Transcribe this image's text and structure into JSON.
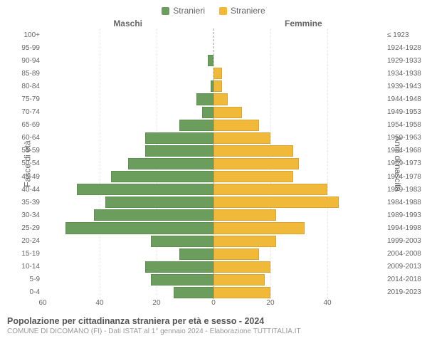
{
  "legend": {
    "male": {
      "label": "Stranieri",
      "color": "#6b9e5c"
    },
    "female": {
      "label": "Straniere",
      "color": "#f0b93a"
    }
  },
  "headers": {
    "left": "Maschi",
    "right": "Femmine"
  },
  "axis_titles": {
    "left": "Fasce di età",
    "right": "Anni di nascita"
  },
  "chart": {
    "type": "bar",
    "xmax": 60,
    "xticks": [
      60,
      40,
      20,
      0,
      20,
      40
    ],
    "grid_color": "#e8e8e8",
    "center_color": "#999999",
    "background_color": "#ffffff",
    "tick_fontsize": 10,
    "label_fontsize": 10,
    "header_fontsize": 12,
    "rows": [
      {
        "age": "100+",
        "birth": "≤ 1923",
        "m": 0,
        "f": 0
      },
      {
        "age": "95-99",
        "birth": "1924-1928",
        "m": 0,
        "f": 0
      },
      {
        "age": "90-94",
        "birth": "1929-1933",
        "m": 2,
        "f": 0
      },
      {
        "age": "85-89",
        "birth": "1934-1938",
        "m": 0,
        "f": 3
      },
      {
        "age": "80-84",
        "birth": "1939-1943",
        "m": 1,
        "f": 3
      },
      {
        "age": "75-79",
        "birth": "1944-1948",
        "m": 6,
        "f": 5
      },
      {
        "age": "70-74",
        "birth": "1949-1953",
        "m": 4,
        "f": 10
      },
      {
        "age": "65-69",
        "birth": "1954-1958",
        "m": 12,
        "f": 16
      },
      {
        "age": "60-64",
        "birth": "1959-1963",
        "m": 24,
        "f": 20
      },
      {
        "age": "55-59",
        "birth": "1964-1968",
        "m": 24,
        "f": 28
      },
      {
        "age": "50-54",
        "birth": "1969-1973",
        "m": 30,
        "f": 30
      },
      {
        "age": "45-49",
        "birth": "1974-1978",
        "m": 36,
        "f": 28
      },
      {
        "age": "40-44",
        "birth": "1979-1983",
        "m": 48,
        "f": 40
      },
      {
        "age": "35-39",
        "birth": "1984-1988",
        "m": 38,
        "f": 44
      },
      {
        "age": "30-34",
        "birth": "1989-1993",
        "m": 42,
        "f": 22
      },
      {
        "age": "25-29",
        "birth": "1994-1998",
        "m": 52,
        "f": 32
      },
      {
        "age": "20-24",
        "birth": "1999-2003",
        "m": 22,
        "f": 22
      },
      {
        "age": "15-19",
        "birth": "2004-2008",
        "m": 12,
        "f": 16
      },
      {
        "age": "10-14",
        "birth": "2009-2013",
        "m": 24,
        "f": 20
      },
      {
        "age": "5-9",
        "birth": "2014-2018",
        "m": 22,
        "f": 18
      },
      {
        "age": "0-4",
        "birth": "2019-2023",
        "m": 14,
        "f": 20
      }
    ]
  },
  "footer": {
    "title": "Popolazione per cittadinanza straniera per età e sesso - 2024",
    "subtitle": "COMUNE DI DICOMANO (FI) - Dati ISTAT al 1° gennaio 2024 - Elaborazione TUTTITALIA.IT"
  }
}
